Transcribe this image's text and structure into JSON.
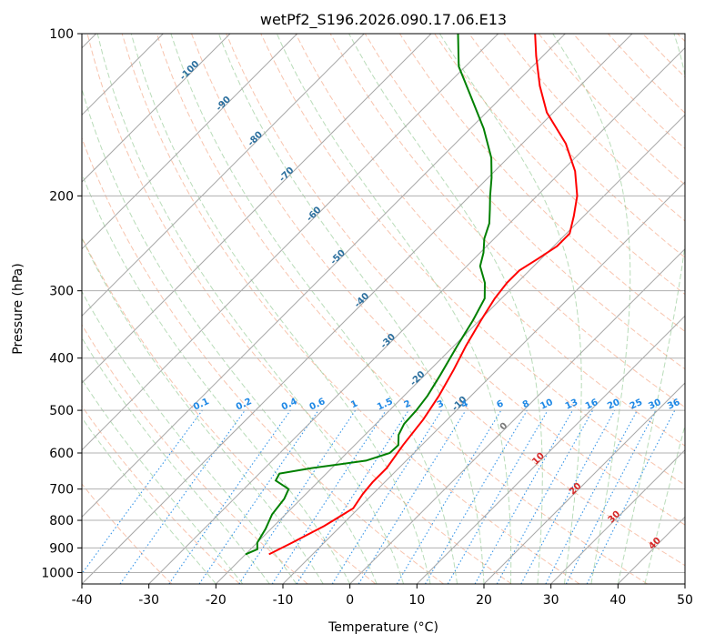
{
  "chart_data": {
    "type": "skew-t log-p sounding (line)",
    "title": "wetPf2_S196.2026.090.17.06.E13",
    "xlabel": "Temperature (°C)",
    "ylabel": "Pressure (hPa)",
    "xlim": [
      -40,
      50
    ],
    "ylim": [
      1050,
      100
    ],
    "x_ticks": [
      -40,
      -30,
      -20,
      -10,
      0,
      10,
      20,
      30,
      40,
      50
    ],
    "y_ticks": [
      100,
      200,
      300,
      400,
      500,
      600,
      700,
      800,
      900,
      1000
    ],
    "grid": true,
    "series": [
      {
        "name": "Temperature",
        "color": "#ff0000",
        "points": [
          {
            "p": 925,
            "t": -16.5
          },
          {
            "p": 880,
            "t": -14.8
          },
          {
            "p": 820,
            "t": -12.5
          },
          {
            "p": 760,
            "t": -10.8
          },
          {
            "p": 715,
            "t": -11.5
          },
          {
            "p": 680,
            "t": -11.8
          },
          {
            "p": 640,
            "t": -11.8
          },
          {
            "p": 580,
            "t": -12.8
          },
          {
            "p": 520,
            "t": -13.6
          },
          {
            "p": 470,
            "t": -14.8
          },
          {
            "p": 420,
            "t": -16.5
          },
          {
            "p": 380,
            "t": -18.2
          },
          {
            "p": 340,
            "t": -19.8
          },
          {
            "p": 310,
            "t": -21.0
          },
          {
            "p": 290,
            "t": -21.5
          },
          {
            "p": 275,
            "t": -21.5
          },
          {
            "p": 262,
            "t": -20.5
          },
          {
            "p": 248,
            "t": -19.5
          },
          {
            "p": 235,
            "t": -19.5
          },
          {
            "p": 218,
            "t": -21.5
          },
          {
            "p": 200,
            "t": -24.0
          },
          {
            "p": 180,
            "t": -28.0
          },
          {
            "p": 160,
            "t": -33.5
          },
          {
            "p": 140,
            "t": -41.0
          },
          {
            "p": 125,
            "t": -46.0
          },
          {
            "p": 110,
            "t": -51.0
          },
          {
            "p": 100,
            "t": -54.5
          }
        ]
      },
      {
        "name": "Dewpoint",
        "color": "#008000",
        "points": [
          {
            "p": 925,
            "t": -20.0
          },
          {
            "p": 905,
            "t": -19.0
          },
          {
            "p": 880,
            "t": -20.0
          },
          {
            "p": 830,
            "t": -20.8
          },
          {
            "p": 780,
            "t": -22.0
          },
          {
            "p": 730,
            "t": -22.5
          },
          {
            "p": 700,
            "t": -23.3
          },
          {
            "p": 675,
            "t": -26.5
          },
          {
            "p": 655,
            "t": -27.0
          },
          {
            "p": 640,
            "t": -23.0
          },
          {
            "p": 620,
            "t": -16.0
          },
          {
            "p": 600,
            "t": -13.6
          },
          {
            "p": 580,
            "t": -13.5
          },
          {
            "p": 555,
            "t": -15.0
          },
          {
            "p": 530,
            "t": -15.8
          },
          {
            "p": 500,
            "t": -16.0
          },
          {
            "p": 470,
            "t": -16.5
          },
          {
            "p": 430,
            "t": -17.7
          },
          {
            "p": 380,
            "t": -19.5
          },
          {
            "p": 340,
            "t": -21.0
          },
          {
            "p": 310,
            "t": -22.5
          },
          {
            "p": 290,
            "t": -24.8
          },
          {
            "p": 270,
            "t": -28.0
          },
          {
            "p": 255,
            "t": -29.5
          },
          {
            "p": 240,
            "t": -31.5
          },
          {
            "p": 225,
            "t": -33.0
          },
          {
            "p": 212,
            "t": -35.0
          },
          {
            "p": 200,
            "t": -37.0
          },
          {
            "p": 185,
            "t": -39.5
          },
          {
            "p": 170,
            "t": -42.5
          },
          {
            "p": 150,
            "t": -48.0
          },
          {
            "p": 130,
            "t": -55.0
          },
          {
            "p": 115,
            "t": -61.0
          },
          {
            "p": 100,
            "t": -66.0
          }
        ]
      }
    ],
    "isotherm_labels": [
      {
        "text": "-100",
        "t": -100,
        "p": 118
      },
      {
        "text": "-90",
        "t": -90,
        "p": 136
      },
      {
        "text": "-80",
        "t": -80,
        "p": 158
      },
      {
        "text": "-70",
        "t": -70,
        "p": 184
      },
      {
        "text": "-60",
        "t": -60,
        "p": 218
      },
      {
        "text": "-50",
        "t": -50,
        "p": 262
      },
      {
        "text": "-40",
        "t": -40,
        "p": 315
      },
      {
        "text": "-30",
        "t": -30,
        "p": 375
      },
      {
        "text": "-20",
        "t": -20,
        "p": 440
      },
      {
        "text": "-10",
        "t": -10,
        "p": 490
      },
      {
        "text": "0",
        "t": 0,
        "p": 540
      },
      {
        "text": "10",
        "t": 10,
        "p": 620
      },
      {
        "text": "20",
        "t": 20,
        "p": 705
      },
      {
        "text": "30",
        "t": 30,
        "p": 795
      },
      {
        "text": "40",
        "t": 40,
        "p": 890
      }
    ],
    "mixing_ratio_labels": [
      "0.1",
      "0.2",
      "0.4",
      "0.6",
      "1",
      "1.5",
      "2",
      "3",
      "4",
      "6",
      "8",
      "10",
      "13",
      "16",
      "20",
      "25",
      "30",
      "36"
    ]
  }
}
